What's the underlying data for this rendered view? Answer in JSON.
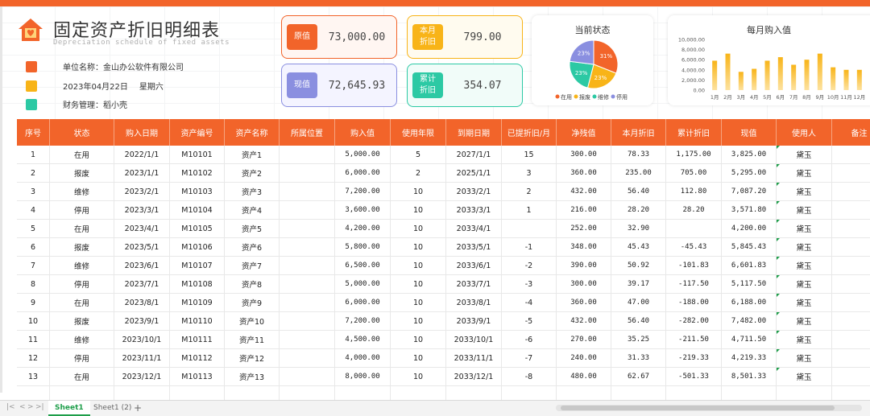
{
  "header": {
    "title": "固定资产折旧明细表",
    "subtitle": "Depreciation schedule of fixed assets",
    "company_label": "单位名称：金山办公软件有限公司",
    "date": "2023年04月22日",
    "weekday": "星期六",
    "manager_label": "财务管理：稻小壳"
  },
  "cards": {
    "original": {
      "label": "原值",
      "value": "73,000.00",
      "color": "#f2642a"
    },
    "current": {
      "label": "现值",
      "value": "72,645.93",
      "color": "#8a8fe0"
    },
    "month_dep": {
      "label": "本月\n折旧",
      "value": "799.00",
      "color": "#f8b418"
    },
    "total_dep": {
      "label": "累计\n折旧",
      "value": "354.07",
      "color": "#2cc9a4"
    }
  },
  "pie_chart": {
    "title": "当前状态",
    "chart_data": {
      "type": "pie",
      "labels": [
        "在用",
        "报废",
        "维修",
        "停用"
      ],
      "values": [
        31,
        23,
        23,
        23
      ],
      "colors": [
        "#f2642a",
        "#f8b418",
        "#2cc9a4",
        "#8a8fe0"
      ],
      "value_labels": [
        "31%",
        "23%",
        "23%",
        "23%"
      ]
    }
  },
  "bar_chart": {
    "title": "每月购入值",
    "chart_data": {
      "type": "bar",
      "categories": [
        "1月",
        "2月",
        "3月",
        "4月",
        "5月",
        "6月",
        "7月",
        "8月",
        "9月",
        "10月",
        "11月",
        "12月"
      ],
      "values": [
        5800,
        7200,
        3600,
        4200,
        5800,
        6500,
        5000,
        6000,
        7200,
        4500,
        4000,
        4000
      ],
      "ylim": [
        0,
        10000
      ],
      "yticks": [
        "0.00",
        "2,000.00",
        "4,000.00",
        "6,000.00",
        "8,000.00",
        "10,000.00"
      ],
      "ytick_values": [
        0,
        2000,
        4000,
        6000,
        8000,
        10000
      ],
      "color": "#f8b418"
    }
  },
  "table": {
    "columns": [
      "序号",
      "状态",
      "购入日期",
      "资产编号",
      "资产名称",
      "所属位置",
      "购入值",
      "使用年限",
      "到期日期",
      "已提折旧/月",
      "净残值",
      "本月折旧",
      "累计折旧",
      "现值",
      "使用人",
      "备注"
    ],
    "rows": [
      [
        "1",
        "在用",
        "2022/1/1",
        "M10101",
        "资产1",
        "",
        "5,000.00",
        "5",
        "2027/1/1",
        "15",
        "300.00",
        "78.33",
        "1,175.00",
        "3,825.00",
        "黛玉",
        ""
      ],
      [
        "2",
        "报废",
        "2023/1/1",
        "M10102",
        "资产2",
        "",
        "6,000.00",
        "2",
        "2025/1/1",
        "3",
        "360.00",
        "235.00",
        "705.00",
        "5,295.00",
        "黛玉",
        ""
      ],
      [
        "3",
        "维修",
        "2023/2/1",
        "M10103",
        "资产3",
        "",
        "7,200.00",
        "10",
        "2033/2/1",
        "2",
        "432.00",
        "56.40",
        "112.80",
        "7,087.20",
        "黛玉",
        ""
      ],
      [
        "4",
        "停用",
        "2023/3/1",
        "M10104",
        "资产4",
        "",
        "3,600.00",
        "10",
        "2033/3/1",
        "1",
        "216.00",
        "28.20",
        "28.20",
        "3,571.80",
        "黛玉",
        ""
      ],
      [
        "5",
        "在用",
        "2023/4/1",
        "M10105",
        "资产5",
        "",
        "4,200.00",
        "10",
        "2033/4/1",
        "",
        "252.00",
        "32.90",
        "",
        "4,200.00",
        "黛玉",
        ""
      ],
      [
        "6",
        "报废",
        "2023/5/1",
        "M10106",
        "资产6",
        "",
        "5,800.00",
        "10",
        "2033/5/1",
        "-1",
        "348.00",
        "45.43",
        "-45.43",
        "5,845.43",
        "黛玉",
        ""
      ],
      [
        "7",
        "维修",
        "2023/6/1",
        "M10107",
        "资产7",
        "",
        "6,500.00",
        "10",
        "2033/6/1",
        "-2",
        "390.00",
        "50.92",
        "-101.83",
        "6,601.83",
        "黛玉",
        ""
      ],
      [
        "8",
        "停用",
        "2023/7/1",
        "M10108",
        "资产8",
        "",
        "5,000.00",
        "10",
        "2033/7/1",
        "-3",
        "300.00",
        "39.17",
        "-117.50",
        "5,117.50",
        "黛玉",
        ""
      ],
      [
        "9",
        "在用",
        "2023/8/1",
        "M10109",
        "资产9",
        "",
        "6,000.00",
        "10",
        "2033/8/1",
        "-4",
        "360.00",
        "47.00",
        "-188.00",
        "6,188.00",
        "黛玉",
        ""
      ],
      [
        "10",
        "报废",
        "2023/9/1",
        "M10110",
        "资产10",
        "",
        "7,200.00",
        "10",
        "2033/9/1",
        "-5",
        "432.00",
        "56.40",
        "-282.00",
        "7,482.00",
        "黛玉",
        ""
      ],
      [
        "11",
        "维修",
        "2023/10/1",
        "M10111",
        "资产11",
        "",
        "4,500.00",
        "10",
        "2033/10/1",
        "-6",
        "270.00",
        "35.25",
        "-211.50",
        "4,711.50",
        "黛玉",
        ""
      ],
      [
        "12",
        "停用",
        "2023/11/1",
        "M10112",
        "资产12",
        "",
        "4,000.00",
        "10",
        "2033/11/1",
        "-7",
        "240.00",
        "31.33",
        "-219.33",
        "4,219.33",
        "黛玉",
        ""
      ],
      [
        "13",
        "在用",
        "2023/12/1",
        "M10113",
        "资产13",
        "",
        "8,000.00",
        "10",
        "2033/12/1",
        "-8",
        "480.00",
        "62.67",
        "-501.33",
        "8,501.33",
        "黛玉",
        ""
      ]
    ]
  },
  "sheet_tabs": [
    "Sheet1",
    "Sheet1 (2)"
  ],
  "sheet_add": "+",
  "sheet_nav": [
    "|<",
    "<",
    ">",
    ">|"
  ],
  "colors": {
    "accent": "#f2642a",
    "sheet_active": "#1e9e4a"
  }
}
